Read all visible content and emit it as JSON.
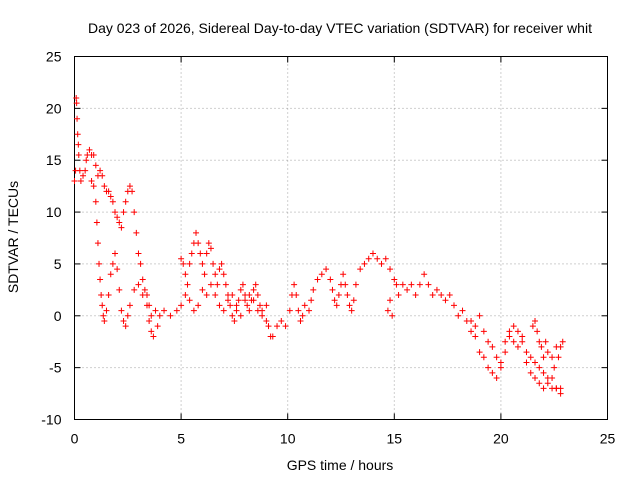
{
  "chart_data": {
    "type": "scatter",
    "title": "Day 023 of 2026, Sidereal Day-to-day VTEC variation (SDTVAR) for receiver whit",
    "xlabel": "GPS time / hours",
    "ylabel": "SDTVAR / TECUs",
    "xlim": [
      0,
      25
    ],
    "ylim": [
      -10,
      25
    ],
    "x_ticks": [
      "0",
      "5",
      "10",
      "15",
      "20",
      "25"
    ],
    "y_ticks": [
      "-10",
      "-5",
      "0",
      "5",
      "10",
      "15",
      "20",
      "25"
    ],
    "grid": true,
    "marker": "plus",
    "series_color": "#ff0000",
    "series": [
      {
        "name": "SDTVAR",
        "points": [
          [
            0.0,
            13.0
          ],
          [
            0.05,
            14.0
          ],
          [
            0.08,
            21.0
          ],
          [
            0.1,
            20.5
          ],
          [
            0.12,
            19.0
          ],
          [
            0.15,
            17.5
          ],
          [
            0.18,
            16.5
          ],
          [
            0.2,
            15.5
          ],
          [
            0.25,
            14.0
          ],
          [
            0.3,
            13.0
          ],
          [
            0.4,
            13.5
          ],
          [
            0.5,
            14.0
          ],
          [
            0.55,
            15.0
          ],
          [
            0.6,
            15.5
          ],
          [
            0.7,
            16.0
          ],
          [
            0.8,
            15.5
          ],
          [
            0.9,
            15.5
          ],
          [
            1.0,
            14.5
          ],
          [
            1.1,
            13.5
          ],
          [
            1.2,
            14.0
          ],
          [
            1.3,
            13.5
          ],
          [
            1.4,
            12.5
          ],
          [
            1.5,
            12.0
          ],
          [
            1.6,
            12.0
          ],
          [
            1.7,
            11.5
          ],
          [
            1.8,
            11.0
          ],
          [
            1.9,
            10.0
          ],
          [
            2.0,
            9.5
          ],
          [
            2.1,
            9.0
          ],
          [
            2.2,
            8.5
          ],
          [
            2.3,
            10.0
          ],
          [
            2.4,
            11.0
          ],
          [
            2.5,
            12.0
          ],
          [
            2.6,
            12.5
          ],
          [
            2.7,
            12.0
          ],
          [
            2.8,
            10.0
          ],
          [
            2.9,
            8.0
          ],
          [
            3.0,
            6.0
          ],
          [
            3.1,
            5.0
          ],
          [
            3.2,
            3.5
          ],
          [
            3.3,
            2.5
          ],
          [
            3.4,
            2.0
          ],
          [
            3.5,
            1.0
          ],
          [
            3.6,
            0.0
          ],
          [
            3.8,
            0.5
          ],
          [
            0.8,
            13.0
          ],
          [
            0.9,
            12.5
          ],
          [
            1.0,
            11.0
          ],
          [
            1.05,
            9.0
          ],
          [
            1.1,
            7.0
          ],
          [
            1.15,
            5.0
          ],
          [
            1.2,
            3.5
          ],
          [
            1.25,
            2.0
          ],
          [
            1.3,
            1.0
          ],
          [
            1.35,
            0.0
          ],
          [
            1.4,
            -0.5
          ],
          [
            1.5,
            0.5
          ],
          [
            1.6,
            2.0
          ],
          [
            1.7,
            4.0
          ],
          [
            1.8,
            5.0
          ],
          [
            1.9,
            6.0
          ],
          [
            2.0,
            4.5
          ],
          [
            2.1,
            2.5
          ],
          [
            2.2,
            0.5
          ],
          [
            2.3,
            -0.5
          ],
          [
            2.4,
            -1.0
          ],
          [
            2.5,
            0.0
          ],
          [
            2.6,
            1.0
          ],
          [
            2.8,
            2.5
          ],
          [
            3.0,
            3.0
          ],
          [
            3.2,
            2.0
          ],
          [
            3.4,
            1.0
          ],
          [
            3.5,
            -0.5
          ],
          [
            3.6,
            -1.5
          ],
          [
            3.7,
            -2.0
          ],
          [
            3.9,
            -1.0
          ],
          [
            4.0,
            0.0
          ],
          [
            4.2,
            0.5
          ],
          [
            4.5,
            0.0
          ],
          [
            4.8,
            0.5
          ],
          [
            5.0,
            1.0
          ],
          [
            5.2,
            2.0
          ],
          [
            5.4,
            1.5
          ],
          [
            5.6,
            0.5
          ],
          [
            5.8,
            1.0
          ],
          [
            6.0,
            2.5
          ],
          [
            6.2,
            2.0
          ],
          [
            6.4,
            3.0
          ],
          [
            6.6,
            2.0
          ],
          [
            6.8,
            1.0
          ],
          [
            7.0,
            0.5
          ],
          [
            7.2,
            1.5
          ],
          [
            7.4,
            2.0
          ],
          [
            7.6,
            1.0
          ],
          [
            7.8,
            0.0
          ],
          [
            8.0,
            1.5
          ],
          [
            8.2,
            2.0
          ],
          [
            8.4,
            1.5
          ],
          [
            8.6,
            0.5
          ],
          [
            8.8,
            0.0
          ],
          [
            9.0,
            -0.5
          ],
          [
            9.1,
            -1.0
          ],
          [
            9.2,
            -2.0
          ],
          [
            9.3,
            -2.0
          ],
          [
            5.0,
            5.5
          ],
          [
            5.1,
            5.0
          ],
          [
            5.2,
            4.0
          ],
          [
            5.3,
            3.0
          ],
          [
            5.4,
            5.0
          ],
          [
            5.5,
            6.0
          ],
          [
            5.6,
            7.0
          ],
          [
            5.7,
            8.0
          ],
          [
            5.8,
            7.0
          ],
          [
            5.9,
            6.0
          ],
          [
            6.0,
            5.0
          ],
          [
            6.1,
            4.0
          ],
          [
            6.2,
            6.0
          ],
          [
            6.3,
            7.0
          ],
          [
            6.4,
            6.5
          ],
          [
            6.5,
            5.0
          ],
          [
            6.6,
            4.0
          ],
          [
            6.7,
            3.0
          ],
          [
            6.8,
            4.5
          ],
          [
            6.9,
            5.0
          ],
          [
            7.0,
            4.0
          ],
          [
            7.1,
            3.0
          ],
          [
            7.2,
            2.0
          ],
          [
            7.3,
            1.0
          ],
          [
            7.4,
            0.0
          ],
          [
            7.5,
            -0.5
          ],
          [
            7.6,
            0.5
          ],
          [
            7.7,
            1.5
          ],
          [
            7.8,
            2.5
          ],
          [
            7.9,
            3.0
          ],
          [
            8.0,
            2.0
          ],
          [
            8.1,
            1.0
          ],
          [
            8.2,
            0.5
          ],
          [
            8.3,
            1.5
          ],
          [
            8.4,
            2.5
          ],
          [
            8.5,
            3.0
          ],
          [
            8.6,
            2.0
          ],
          [
            8.7,
            1.0
          ],
          [
            8.8,
            0.5
          ],
          [
            9.0,
            1.0
          ],
          [
            9.5,
            -1.0
          ],
          [
            9.7,
            -0.5
          ],
          [
            9.9,
            -1.0
          ],
          [
            10.1,
            0.5
          ],
          [
            10.2,
            2.0
          ],
          [
            10.3,
            3.0
          ],
          [
            10.4,
            2.0
          ],
          [
            10.5,
            0.5
          ],
          [
            10.6,
            -0.5
          ],
          [
            10.7,
            0.0
          ],
          [
            10.8,
            1.0
          ],
          [
            11.0,
            0.5
          ],
          [
            11.1,
            1.5
          ],
          [
            11.2,
            2.5
          ],
          [
            11.4,
            3.5
          ],
          [
            11.6,
            4.0
          ],
          [
            11.8,
            4.5
          ],
          [
            12.0,
            3.5
          ],
          [
            12.1,
            2.5
          ],
          [
            12.2,
            1.5
          ],
          [
            12.3,
            1.0
          ],
          [
            12.4,
            2.0
          ],
          [
            12.5,
            3.0
          ],
          [
            12.6,
            4.0
          ],
          [
            12.7,
            3.0
          ],
          [
            12.8,
            2.0
          ],
          [
            12.9,
            1.0
          ],
          [
            13.0,
            0.5
          ],
          [
            13.1,
            1.5
          ],
          [
            13.2,
            3.0
          ],
          [
            13.4,
            4.5
          ],
          [
            13.6,
            5.0
          ],
          [
            13.8,
            5.5
          ],
          [
            14.0,
            6.0
          ],
          [
            14.2,
            5.5
          ],
          [
            14.4,
            5.0
          ],
          [
            14.6,
            5.5
          ],
          [
            14.8,
            4.5
          ],
          [
            15.0,
            3.5
          ],
          [
            15.1,
            3.0
          ],
          [
            14.8,
            1.5
          ],
          [
            14.7,
            0.5
          ],
          [
            14.9,
            0.0
          ],
          [
            15.2,
            2.0
          ],
          [
            15.4,
            3.0
          ],
          [
            15.6,
            2.5
          ],
          [
            15.8,
            3.0
          ],
          [
            16.0,
            2.0
          ],
          [
            16.2,
            3.0
          ],
          [
            16.4,
            4.0
          ],
          [
            16.6,
            3.0
          ],
          [
            16.8,
            2.0
          ],
          [
            17.0,
            2.5
          ],
          [
            17.2,
            2.0
          ],
          [
            17.4,
            1.5
          ],
          [
            17.6,
            2.0
          ],
          [
            17.8,
            1.0
          ],
          [
            18.0,
            0.0
          ],
          [
            18.2,
            0.5
          ],
          [
            18.4,
            -0.5
          ],
          [
            18.6,
            -1.5
          ],
          [
            18.8,
            -1.0
          ],
          [
            19.0,
            0.0
          ],
          [
            19.2,
            -1.5
          ],
          [
            19.4,
            -2.5
          ],
          [
            19.6,
            -3.0
          ],
          [
            19.8,
            -4.0
          ],
          [
            20.0,
            -4.5
          ],
          [
            20.2,
            -2.5
          ],
          [
            20.4,
            -1.5
          ],
          [
            20.6,
            -2.5
          ],
          [
            20.8,
            -3.0
          ],
          [
            21.0,
            -2.5
          ],
          [
            21.2,
            -3.5
          ],
          [
            21.4,
            -4.0
          ],
          [
            21.6,
            -4.5
          ],
          [
            21.8,
            -5.0
          ],
          [
            22.0,
            -5.5
          ],
          [
            22.2,
            -6.0
          ],
          [
            22.4,
            -6.0
          ],
          [
            22.6,
            -7.0
          ],
          [
            22.8,
            -7.5
          ],
          [
            18.6,
            -0.5
          ],
          [
            18.8,
            -2.0
          ],
          [
            19.0,
            -3.5
          ],
          [
            19.2,
            -4.0
          ],
          [
            19.4,
            -5.0
          ],
          [
            19.6,
            -5.5
          ],
          [
            19.8,
            -6.0
          ],
          [
            20.0,
            -5.0
          ],
          [
            20.2,
            -3.5
          ],
          [
            20.4,
            -2.0
          ],
          [
            20.6,
            -1.0
          ],
          [
            20.8,
            -1.5
          ],
          [
            21.0,
            -2.0
          ],
          [
            21.2,
            -4.5
          ],
          [
            21.4,
            -5.5
          ],
          [
            21.6,
            -6.0
          ],
          [
            21.8,
            -6.5
          ],
          [
            22.0,
            -7.0
          ],
          [
            22.2,
            -6.5
          ],
          [
            22.4,
            -7.0
          ],
          [
            22.6,
            -7.0
          ],
          [
            22.8,
            -7.0
          ],
          [
            21.5,
            -1.0
          ],
          [
            21.6,
            -0.5
          ],
          [
            21.7,
            -1.5
          ],
          [
            21.8,
            -2.5
          ],
          [
            21.9,
            -3.0
          ],
          [
            22.0,
            -4.0
          ],
          [
            22.1,
            -2.5
          ],
          [
            22.2,
            -3.5
          ],
          [
            22.4,
            -4.0
          ],
          [
            22.5,
            -5.0
          ],
          [
            22.6,
            -3.0
          ],
          [
            22.7,
            -4.0
          ],
          [
            22.8,
            -3.0
          ],
          [
            22.9,
            -2.5
          ]
        ]
      }
    ]
  }
}
